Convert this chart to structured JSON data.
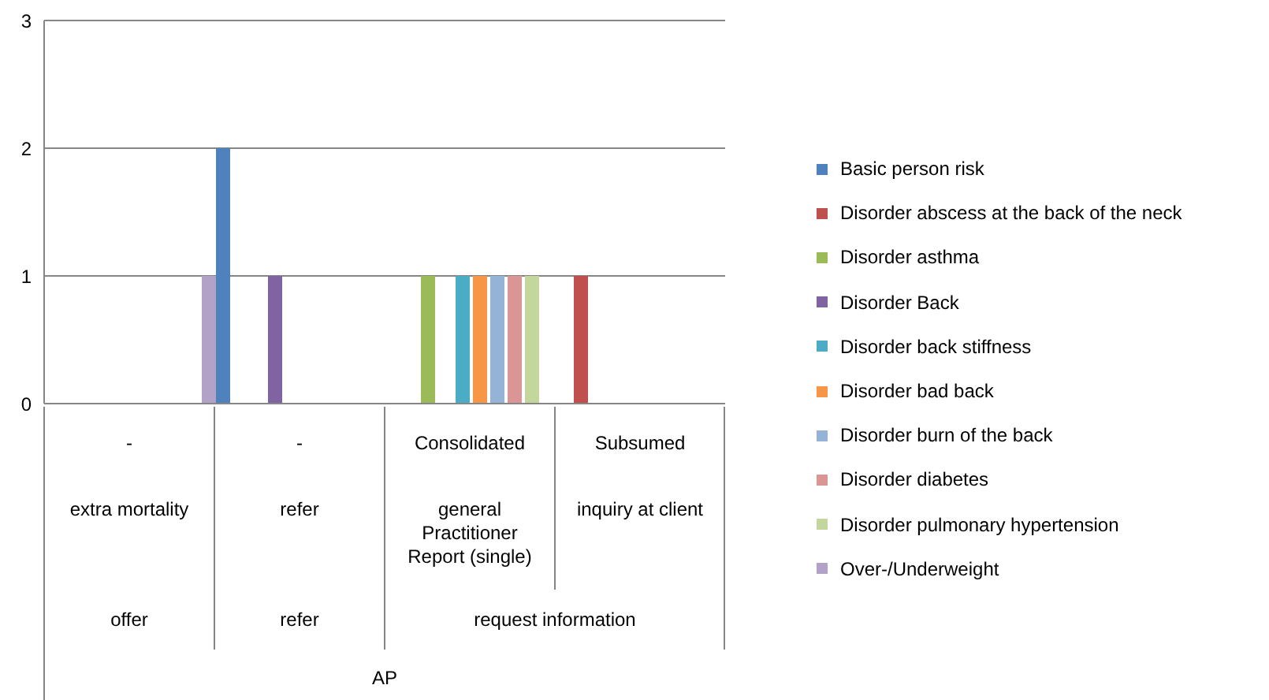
{
  "chart_data": {
    "type": "bar",
    "annotations": [
      "offer",
      "refer",
      "request information",
      "AP"
    ],
    "categories": [
      "-\nextra mortality",
      "-\nrefer",
      "Consolidated\ngeneral Practitioner Report (single)",
      "Subsumed\ninquiry at client"
    ],
    "series": [
      {
        "name": "Basic person risk",
        "color": "#4f81bd",
        "values": [
          null,
          2,
          null,
          null
        ]
      },
      {
        "name": "Disorder abscess at the back of the neck",
        "color": "#c0504d",
        "values": [
          null,
          null,
          null,
          1
        ]
      },
      {
        "name": "Disorder asthma",
        "color": "#9bbb59",
        "values": [
          null,
          null,
          1,
          null
        ]
      },
      {
        "name": "Disorder Back",
        "color": "#8064a2",
        "values": [
          null,
          1,
          null,
          null
        ]
      },
      {
        "name": "Disorder back stiffness",
        "color": "#4bacc6",
        "values": [
          null,
          null,
          1,
          null
        ]
      },
      {
        "name": "Disorder bad back",
        "color": "#f79646",
        "values": [
          null,
          null,
          1,
          null
        ]
      },
      {
        "name": "Disorder burn of the back",
        "color": "#95b3d7",
        "values": [
          null,
          null,
          1,
          null
        ]
      },
      {
        "name": "Disorder diabetes",
        "color": "#da9694",
        "values": [
          null,
          null,
          1,
          null
        ]
      },
      {
        "name": "Disorder pulmonary hypertension",
        "color": "#c3d69b",
        "values": [
          null,
          null,
          1,
          null
        ]
      },
      {
        "name": "Over-/Underweight",
        "color": "#b3a2c7",
        "values": [
          1,
          null,
          null,
          null
        ]
      }
    ],
    "ylim": [
      0,
      3
    ],
    "yticks": [
      0,
      1,
      2,
      3
    ],
    "grid": "y",
    "legend": "right"
  }
}
